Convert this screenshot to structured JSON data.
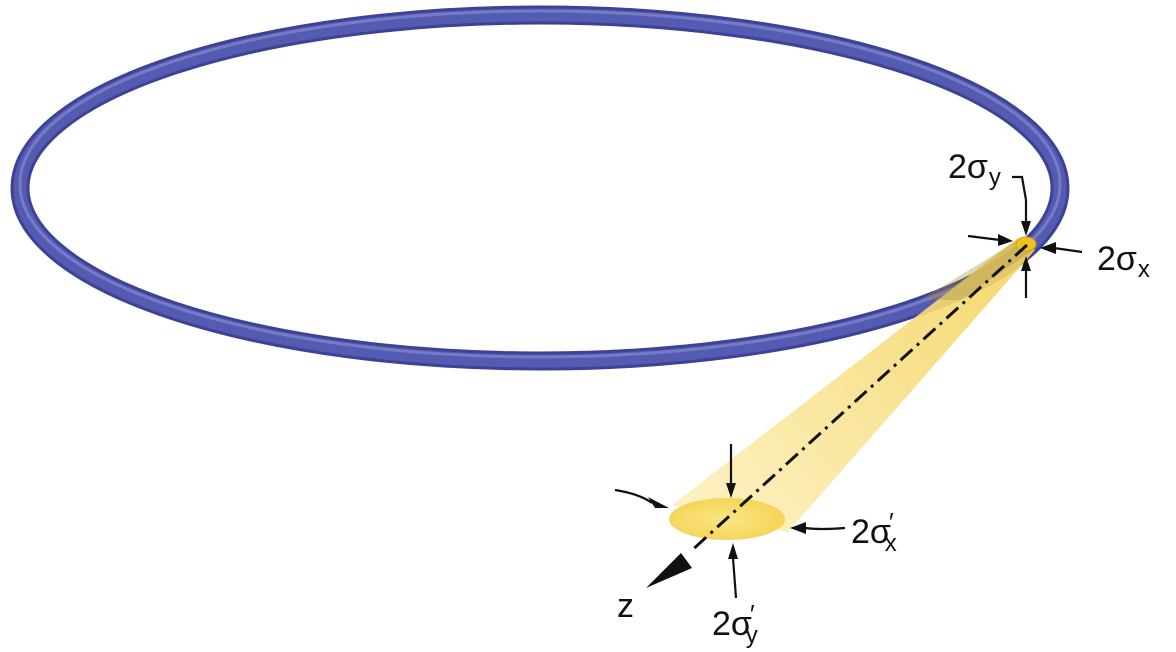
{
  "diagram": {
    "colors": {
      "ring": "#4a50a6",
      "ring_highlight": "#8a90d8",
      "beam": "#f6d96a",
      "beam_light": "#fdf3c7",
      "source": "#f0c21a",
      "arrows": "#111111"
    },
    "labels": {
      "source_height": {
        "base": "2σ",
        "sub": "y"
      },
      "source_width": {
        "base": "2σ",
        "sub": "x"
      },
      "divergence_x": {
        "base": "2σ",
        "prime": "′",
        "sub": "x"
      },
      "divergence_y": {
        "base": "2σ",
        "prime": "′",
        "sub": "y"
      },
      "axis": "z"
    }
  }
}
